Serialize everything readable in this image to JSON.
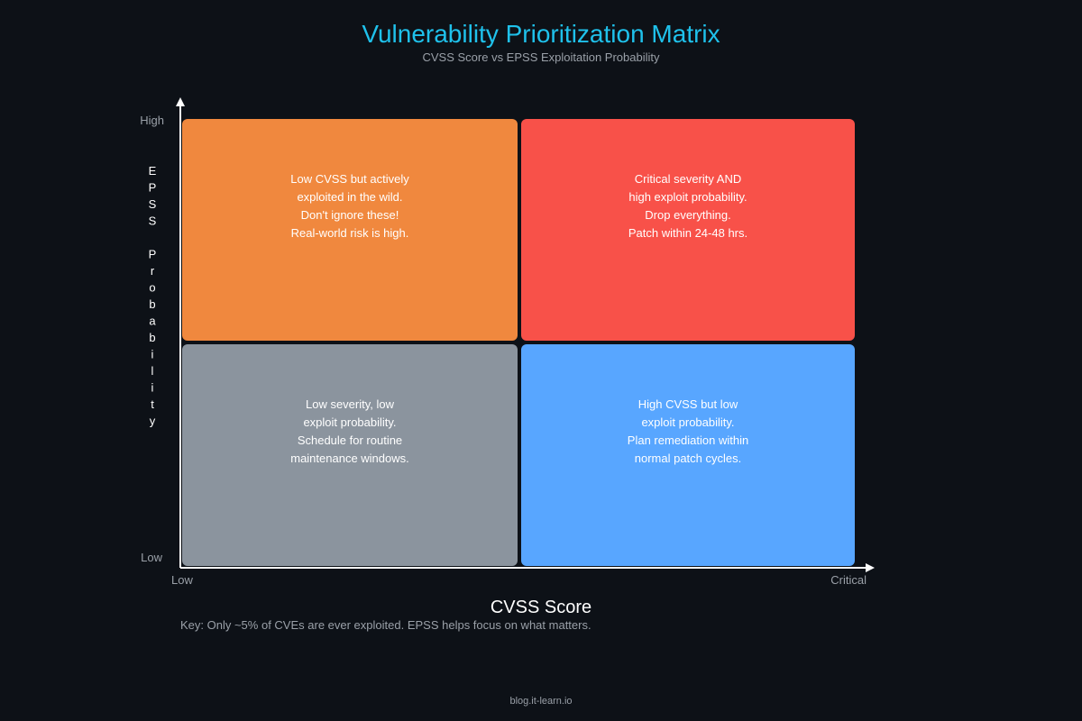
{
  "header": {
    "title": "Vulnerability Prioritization Matrix",
    "subtitle": "CVSS Score vs EPSS Exploitation Probability"
  },
  "y_axis": {
    "label": "EPSS Probability",
    "high": "High",
    "low": "Low"
  },
  "x_axis": {
    "label": "CVSS Score",
    "low": "Low",
    "high": "Critical"
  },
  "quadrants": [
    {
      "lines": [
        "Low CVSS but actively",
        "exploited in the wild.",
        "Don't ignore these!",
        "Real-world risk is high."
      ]
    },
    {
      "lines": [
        "Critical severity AND",
        "high exploit probability.",
        "Drop everything.",
        "Patch within 24-48 hrs."
      ]
    },
    {
      "lines": [
        "Low severity, low",
        "exploit probability.",
        "Schedule for routine",
        "maintenance windows."
      ]
    },
    {
      "lines": [
        "High CVSS but low",
        "exploit probability.",
        "Plan remediation within",
        "normal patch cycles."
      ]
    }
  ],
  "key": "Key: Only ~5% of CVEs are ever exploited. EPSS helps focus on what matters.",
  "footer": "blog.it-learn.io"
}
